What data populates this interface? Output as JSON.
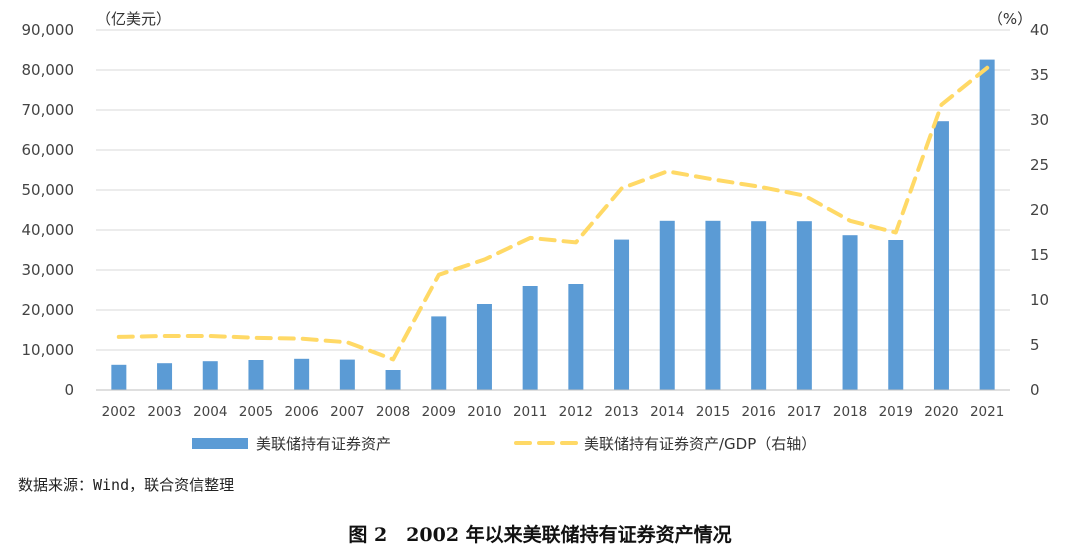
{
  "chart_data": {
    "type": "bar",
    "categories": [
      "2002",
      "2003",
      "2004",
      "2005",
      "2006",
      "2007",
      "2008",
      "2009",
      "2010",
      "2011",
      "2012",
      "2013",
      "2014",
      "2015",
      "2016",
      "2017",
      "2018",
      "2019",
      "2020",
      "2021"
    ],
    "series": [
      {
        "name": "美联储持有证券资产",
        "type": "bar",
        "axis": "left",
        "color": "#5b9bd5",
        "values": [
          6300,
          6700,
          7200,
          7500,
          7800,
          7600,
          5000,
          18400,
          21500,
          26000,
          26500,
          37600,
          42300,
          42300,
          42200,
          42200,
          38700,
          37500,
          67200,
          82600
        ]
      },
      {
        "name": "美联储持有证券资产/GDP（右轴）",
        "type": "line",
        "axis": "right",
        "color": "#ffd966",
        "values": [
          5.9,
          6.0,
          6.0,
          5.8,
          5.7,
          5.3,
          3.4,
          12.8,
          14.5,
          16.9,
          16.4,
          22.4,
          24.3,
          23.4,
          22.6,
          21.6,
          18.8,
          17.5,
          31.7,
          35.8
        ]
      }
    ],
    "left_axis": {
      "unit_label": "（亿美元）",
      "min": 0,
      "max": 90000,
      "step": 10000,
      "ticks": [
        "0",
        "10,000",
        "20,000",
        "30,000",
        "40,000",
        "50,000",
        "60,000",
        "70,000",
        "80,000",
        "90,000"
      ]
    },
    "right_axis": {
      "unit_label": "（%）",
      "min": 0,
      "max": 40,
      "step": 5,
      "ticks": [
        "0",
        "5",
        "10",
        "15",
        "20",
        "25",
        "30",
        "35",
        "40"
      ]
    },
    "grid": true,
    "legend_position": "bottom"
  },
  "source_note": "数据来源：Wind，联合资信整理",
  "caption": "图 2　2002 年以来美联储持有证券资产情况"
}
